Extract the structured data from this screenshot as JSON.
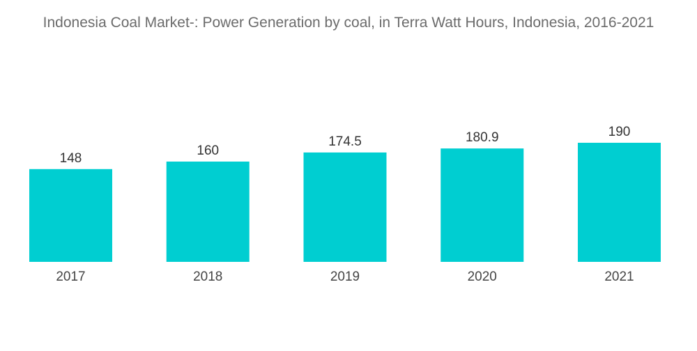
{
  "chart_data": {
    "type": "bar",
    "title": "Indonesia Coal Market-: Power Generation by coal, in Terra Watt Hours, Indonesia, 2016-2021",
    "categories": [
      "2017",
      "2018",
      "2019",
      "2020",
      "2021"
    ],
    "values": [
      148,
      160,
      174.5,
      180.9,
      190
    ],
    "value_labels": [
      "148",
      "160",
      "174.5",
      "180.9",
      "190"
    ],
    "ylim": [
      0,
      200
    ],
    "grid": false,
    "legend": "none",
    "bar_color": "#00CED1"
  }
}
